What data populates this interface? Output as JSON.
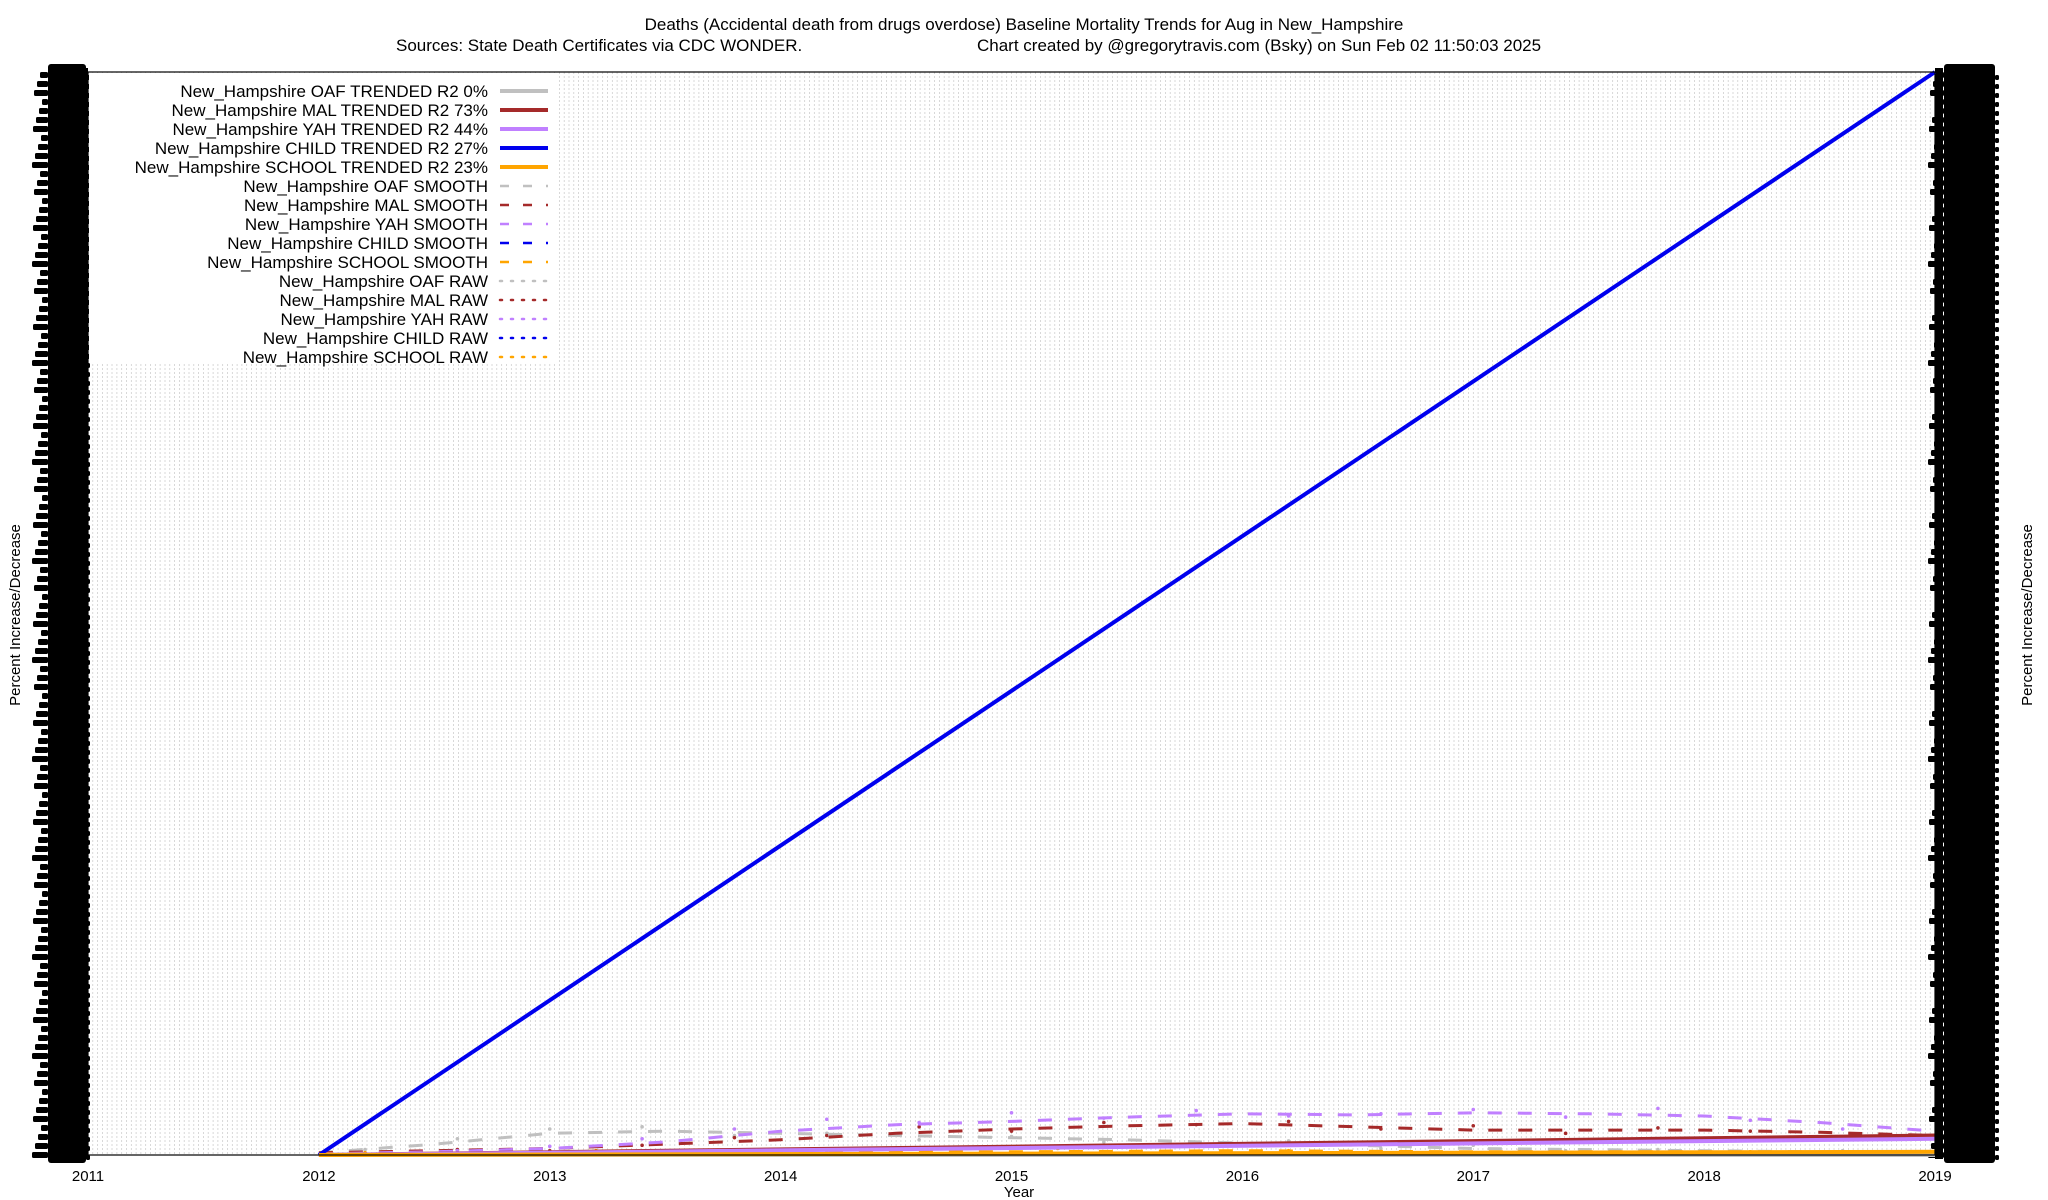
{
  "chart_data": {
    "type": "line",
    "title_line1": "Deaths (Accidental death from drugs overdose)  Baseline Mortality Trends for Aug in New_Hampshire",
    "title_line2_left": "Sources: State Death Certificates via CDC WONDER.",
    "title_line2_right": "Chart created by @gregorytravis.com (Bsky) on Sun Feb 02 11:50:03 2025",
    "xlabel": "Year",
    "ylabel_left": "Percent Increase/Decrease",
    "ylabel_right": "Percent Increase/Decrease",
    "x_ticks": [
      "2011",
      "2012",
      "2013",
      "2014",
      "2015",
      "2016",
      "2017",
      "2018",
      "2019"
    ],
    "xlim": [
      2011,
      2019
    ],
    "ylim": [
      0,
      100
    ],
    "grid": true,
    "legend_position": "top-left",
    "series": [
      {
        "name": "New_Hampshire OAF TRENDED R2",
        "r2": "0%",
        "color": "#c0c0c0",
        "style": "trend",
        "x": [
          2012,
          2019
        ],
        "y": [
          0,
          0
        ]
      },
      {
        "name": "New_Hampshire MAL TRENDED R2",
        "r2": "73%",
        "color": "#a52a2a",
        "style": "trend",
        "x": [
          2012,
          2019
        ],
        "y": [
          0,
          1.8
        ]
      },
      {
        "name": "New_Hampshire YAH TRENDED R2",
        "r2": "44%",
        "color": "#c080ff",
        "style": "trend",
        "x": [
          2012,
          2019
        ],
        "y": [
          0,
          1.5
        ]
      },
      {
        "name": "New_Hampshire CHILD TRENDED R2",
        "r2": "27%",
        "color": "#0000ee",
        "style": "trend",
        "x": [
          2012,
          2019
        ],
        "y": [
          0,
          100
        ]
      },
      {
        "name": "New_Hampshire SCHOOL TRENDED R2",
        "r2": "23%",
        "color": "#ffa500",
        "style": "trend",
        "x": [
          2012,
          2019
        ],
        "y": [
          0,
          0.3
        ]
      },
      {
        "name": "New_Hampshire OAF SMOOTH",
        "color": "#c0c0c0",
        "style": "smooth",
        "x": [
          2012,
          2012.5,
          2013,
          2013.5,
          2014,
          2014.5,
          2015,
          2015.5,
          2016,
          2016.5,
          2017,
          2017.5,
          2018,
          2018.5,
          2019
        ],
        "y": [
          0.2,
          1.0,
          2.0,
          2.2,
          2.0,
          1.8,
          1.6,
          1.4,
          1.1,
          0.9,
          0.6,
          0.5,
          0.4,
          0.3,
          0.2
        ]
      },
      {
        "name": "New_Hampshire MAL SMOOTH",
        "color": "#a52a2a",
        "style": "smooth",
        "x": [
          2012,
          2012.5,
          2013,
          2013.5,
          2014,
          2014.5,
          2015,
          2015.5,
          2016,
          2016.5,
          2017,
          2017.5,
          2018,
          2018.5,
          2019
        ],
        "y": [
          0.2,
          0.4,
          0.6,
          1.0,
          1.4,
          2.0,
          2.4,
          2.7,
          2.9,
          2.6,
          2.3,
          2.3,
          2.3,
          2.1,
          1.8
        ]
      },
      {
        "name": "New_Hampshire YAH SMOOTH",
        "color": "#c080ff",
        "style": "smooth",
        "x": [
          2012,
          2012.5,
          2013,
          2013.5,
          2014,
          2014.5,
          2015,
          2015.5,
          2016,
          2016.5,
          2017,
          2017.5,
          2018,
          2018.5,
          2019
        ],
        "y": [
          0.1,
          0.3,
          0.6,
          1.2,
          2.2,
          2.8,
          3.1,
          3.5,
          3.8,
          3.7,
          3.9,
          3.8,
          3.6,
          3.0,
          2.2
        ]
      },
      {
        "name": "New_Hampshire CHILD SMOOTH",
        "color": "#0000ee",
        "style": "smooth",
        "x": [
          2012,
          2019
        ],
        "y": [
          0,
          100
        ]
      },
      {
        "name": "New_Hampshire SCHOOL SMOOTH",
        "color": "#ffa500",
        "style": "smooth",
        "x": [
          2012,
          2013,
          2014,
          2015,
          2016,
          2017,
          2018,
          2019
        ],
        "y": [
          0.1,
          0.2,
          0.3,
          0.3,
          0.4,
          0.3,
          0.3,
          0.2
        ]
      },
      {
        "name": "New_Hampshire OAF RAW",
        "color": "#c0c0c0",
        "style": "raw",
        "x": [
          2012.2,
          2012.6,
          2013.0,
          2013.4,
          2013.8,
          2014.2,
          2014.6,
          2015.0,
          2015.4,
          2015.8,
          2016.2,
          2016.6,
          2017.0,
          2017.4,
          2017.8,
          2018.2,
          2018.6
        ],
        "y": [
          0.5,
          1.5,
          2.4,
          2.6,
          1.8,
          2.0,
          1.4,
          1.7,
          1.2,
          1.0,
          1.3,
          0.6,
          0.9,
          0.4,
          0.5,
          0.3,
          0.4
        ]
      },
      {
        "name": "New_Hampshire MAL RAW",
        "color": "#a52a2a",
        "style": "raw",
        "x": [
          2012.2,
          2012.6,
          2013.0,
          2013.4,
          2013.8,
          2014.2,
          2014.6,
          2015.0,
          2015.4,
          2015.8,
          2016.2,
          2016.6,
          2017.0,
          2017.4,
          2017.8,
          2018.2,
          2018.6
        ],
        "y": [
          0.2,
          0.5,
          0.4,
          0.9,
          1.6,
          1.8,
          2.6,
          2.2,
          3.0,
          2.8,
          3.1,
          2.4,
          2.7,
          2.0,
          2.5,
          2.2,
          1.6
        ]
      },
      {
        "name": "New_Hampshire YAH RAW",
        "color": "#c080ff",
        "style": "raw",
        "x": [
          2012.2,
          2012.6,
          2013.0,
          2013.4,
          2013.8,
          2014.2,
          2014.6,
          2015.0,
          2015.4,
          2015.8,
          2016.2,
          2016.6,
          2017.0,
          2017.4,
          2017.8,
          2018.2,
          2018.6
        ],
        "y": [
          0.1,
          0.4,
          0.8,
          1.5,
          2.4,
          3.3,
          3.0,
          3.9,
          3.4,
          4.1,
          3.6,
          3.8,
          4.2,
          3.5,
          4.3,
          3.2,
          2.4
        ]
      },
      {
        "name": "New_Hampshire CHILD RAW",
        "color": "#0000ee",
        "style": "raw",
        "x": [
          2012.2,
          2013.2,
          2014.2,
          2015.2,
          2016.2,
          2017.2,
          2018.2
        ],
        "y": [
          0,
          0,
          0,
          0,
          0,
          0,
          0
        ]
      },
      {
        "name": "New_Hampshire SCHOOL RAW",
        "color": "#ffa500",
        "style": "raw",
        "x": [
          2012.2,
          2013.2,
          2014.2,
          2015.2,
          2016.2,
          2017.2,
          2018.2
        ],
        "y": [
          0.2,
          0.4,
          0.3,
          0.6,
          0.4,
          0.5,
          0.3
        ]
      }
    ]
  }
}
